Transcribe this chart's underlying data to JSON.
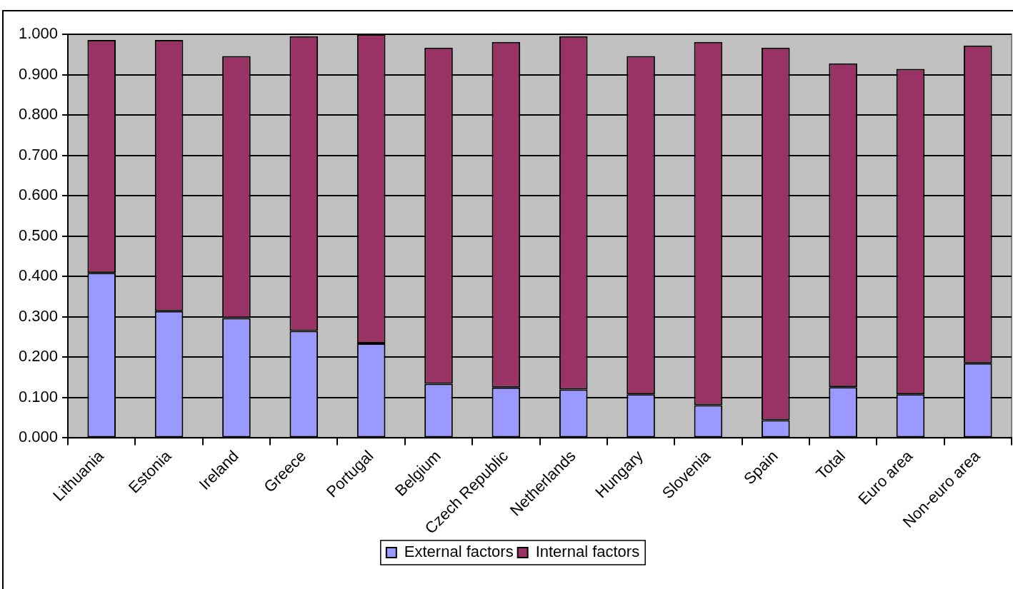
{
  "chart_data": {
    "type": "bar",
    "stacked": true,
    "categories": [
      "Lithuania",
      "Estonia",
      "Ireland",
      "Greece",
      "Portugal",
      "Belgium",
      "Czech Republic",
      "Netherlands",
      "Hungary",
      "Slovenia",
      "Spain",
      "Total",
      "Euro area",
      "Non-euro area"
    ],
    "series": [
      {
        "name": "External factors",
        "color": "#9999ff",
        "values": [
          0.409,
          0.314,
          0.297,
          0.265,
          0.234,
          0.134,
          0.125,
          0.12,
          0.108,
          0.081,
          0.044,
          0.126,
          0.108,
          0.185
        ]
      },
      {
        "name": "Internal factors",
        "color": "#993366",
        "values": [
          0.577,
          0.672,
          0.649,
          0.73,
          0.766,
          0.833,
          0.856,
          0.875,
          0.838,
          0.9,
          0.923,
          0.802,
          0.806,
          0.787
        ]
      }
    ],
    "ylim": [
      0,
      1
    ],
    "yticks": [
      {
        "value": 0,
        "label": "0.000"
      },
      {
        "value": 0.1,
        "label": "0.100"
      },
      {
        "value": 0.2,
        "label": "0.200"
      },
      {
        "value": 0.3,
        "label": "0.300"
      },
      {
        "value": 0.4,
        "label": "0.400"
      },
      {
        "value": 0.5,
        "label": "0.500"
      },
      {
        "value": 0.6,
        "label": "0.600"
      },
      {
        "value": 0.7,
        "label": "0.700"
      },
      {
        "value": 0.8,
        "label": "0.800"
      },
      {
        "value": 0.9,
        "label": "0.900"
      },
      {
        "value": 1,
        "label": "1.000"
      }
    ],
    "grid": "y",
    "legend": "bottom"
  }
}
